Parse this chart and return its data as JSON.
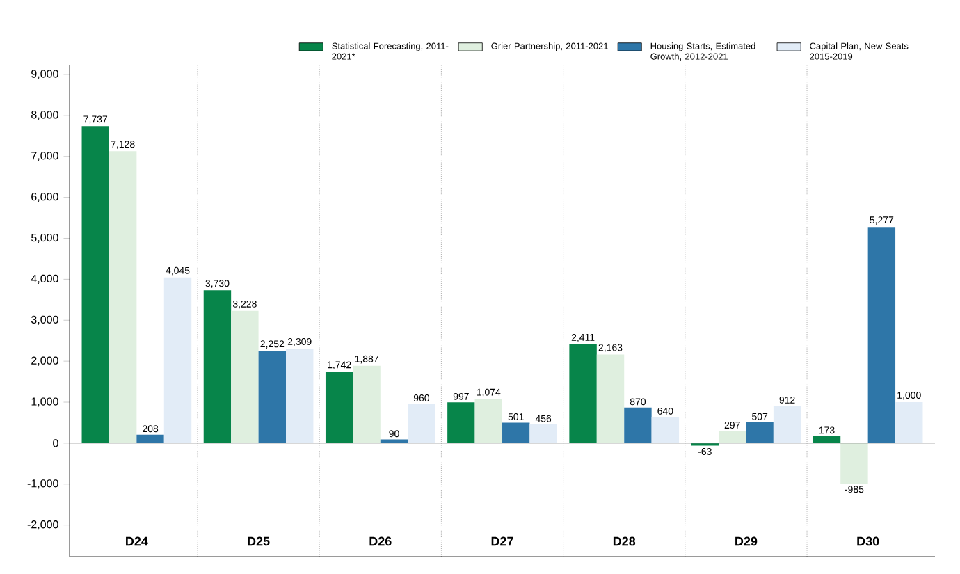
{
  "chart_data": {
    "type": "bar",
    "categories": [
      "D24",
      "D25",
      "D26",
      "D27",
      "D28",
      "D29",
      "D30"
    ],
    "series": [
      {
        "name": "Statistical Forecasting, 2011-2021*",
        "color": "#07854a",
        "values": [
          7737,
          3730,
          1742,
          997,
          2411,
          -63,
          173
        ],
        "value_labels": [
          "7,737",
          "3,730",
          "1,742",
          "997",
          "2,411",
          "-63",
          "173"
        ]
      },
      {
        "name": "Grier Partnership, 2011-2021",
        "color": "#dfefdf",
        "values": [
          7128,
          3228,
          1887,
          1074,
          2163,
          297,
          -985
        ],
        "value_labels": [
          "7,128",
          "3,228",
          "1,887",
          "1,074",
          "2,163",
          "297",
          "-985"
        ]
      },
      {
        "name": "Housing Starts, Estimated Growth, 2012-2021",
        "color": "#2e76a8",
        "values": [
          208,
          2252,
          90,
          501,
          870,
          507,
          5277
        ],
        "value_labels": [
          "208",
          "2,252",
          "90",
          "501",
          "870",
          "507",
          "5,277"
        ]
      },
      {
        "name": "Capital Plan, New Seats 2015-2019",
        "color": "#e2ecf7",
        "values": [
          4045,
          2309,
          960,
          456,
          640,
          912,
          1000
        ],
        "value_labels": [
          "4,045",
          "2,309",
          "960",
          "456",
          "640",
          "912",
          "1,000"
        ]
      }
    ],
    "ylim": [
      -2770,
      9220
    ],
    "yticks": [
      {
        "value": -2000,
        "label": "-2,000"
      },
      {
        "value": -1000,
        "label": "-1,000"
      },
      0,
      {
        "value": 1000,
        "label": "1,000"
      },
      {
        "value": 2000,
        "label": "2,000"
      },
      {
        "value": 3000,
        "label": "3,000"
      },
      {
        "value": 4000,
        "label": "4,000"
      },
      {
        "value": 5000,
        "label": "5,000"
      },
      {
        "value": 6000,
        "label": "6,000"
      },
      {
        "value": 7000,
        "label": "7,000"
      },
      {
        "value": 8000,
        "label": "8,000"
      },
      {
        "value": 9000,
        "label": "9,000"
      }
    ],
    "grid": "x",
    "legend": "top right"
  }
}
